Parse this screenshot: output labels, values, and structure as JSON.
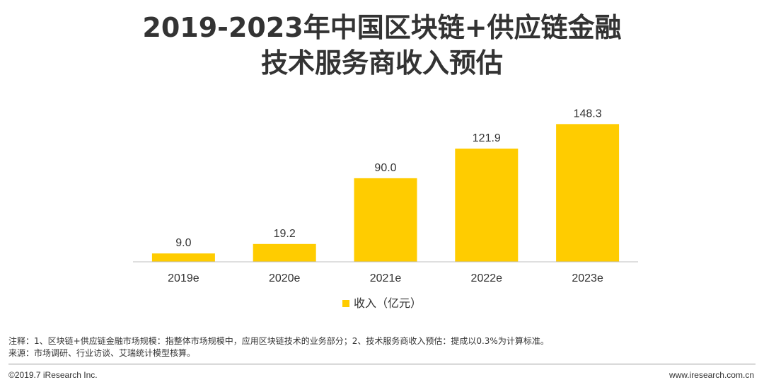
{
  "title_line1": "2019-2023年中国区块链+供应链金融",
  "title_line2": "技术服务商收入预估",
  "chart_data": {
    "type": "bar",
    "categories": [
      "2019e",
      "2020e",
      "2021e",
      "2022e",
      "2023e"
    ],
    "series": [
      {
        "name": "收入（亿元）",
        "values": [
          9.0,
          19.2,
          90.0,
          121.9,
          148.3
        ]
      }
    ],
    "value_labels": [
      "9.0",
      "19.2",
      "90.0",
      "121.9",
      "148.3"
    ],
    "ylim": [
      0,
      160
    ],
    "legend_position": "bottom",
    "bar_color": "#FFCC00",
    "grid": false
  },
  "notes": {
    "line1": "注释：1、区块链+供应链金融市场规模：指整体市场规模中，应用区块链技术的业务部分；2、技术服务商收入预估：提成以0.3%为计算标准。",
    "line2": "来源：市场调研、行业访谈、艾瑞统计模型核算。"
  },
  "footer": {
    "left": "©2019.7 iResearch Inc.",
    "right": "www.iresearch.com.cn"
  }
}
